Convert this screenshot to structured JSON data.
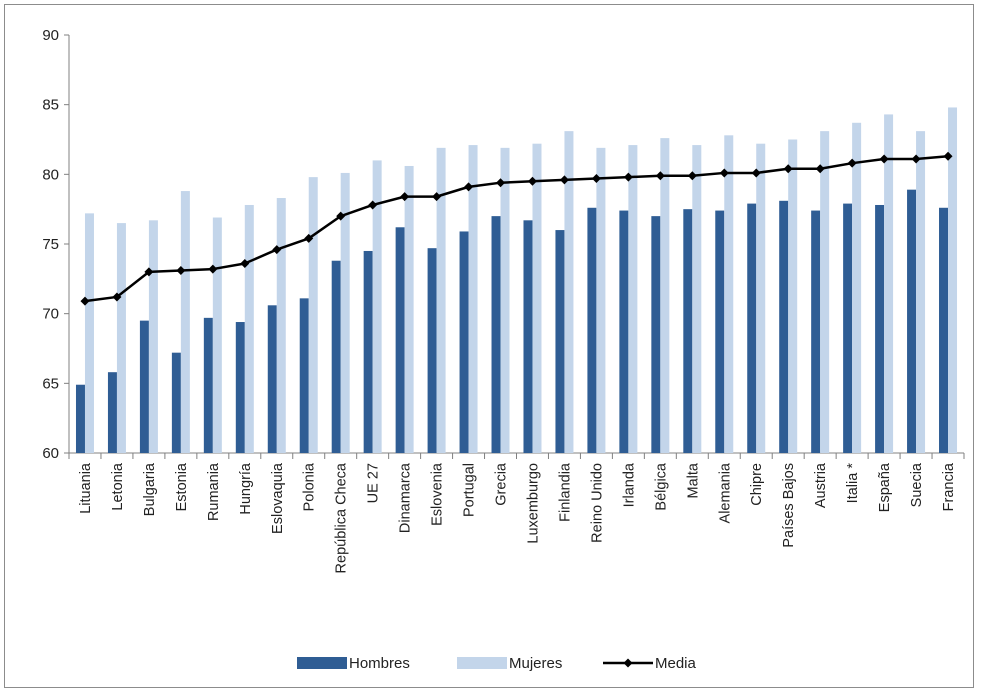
{
  "chart_data": {
    "type": "bar",
    "title": "",
    "xlabel": "",
    "ylabel": "",
    "ylim": [
      60,
      90
    ],
    "yticks": [
      60,
      65,
      70,
      75,
      80,
      85,
      90
    ],
    "grid": false,
    "legend_position": "bottom",
    "categories": [
      "Lituania",
      "Letonia",
      "Bulgaria",
      "Estonia",
      "Rumania",
      "Hungría",
      "Eslovaquia",
      "Polonia",
      "República Checa",
      "UE 27",
      "Dinamarca",
      "Eslovenia",
      "Portugal",
      "Grecia",
      "Luxemburgo",
      "Finlandia",
      "Reino Unido",
      "Irlanda",
      "Bélgica",
      "Malta",
      "Alemania",
      "Chipre",
      "Países Bajos",
      "Austria",
      "Italia *",
      "España",
      "Suecia",
      "Francia"
    ],
    "series": [
      {
        "name": "Hombres",
        "type": "bar",
        "color": "#2f5d94",
        "values": [
          64.9,
          65.8,
          69.5,
          67.2,
          69.7,
          69.4,
          70.6,
          71.1,
          73.8,
          74.5,
          76.2,
          74.7,
          75.9,
          77.0,
          76.7,
          76.0,
          77.6,
          77.4,
          77.0,
          77.5,
          77.4,
          77.9,
          78.1,
          77.4,
          77.9,
          77.8,
          78.9,
          77.6
        ]
      },
      {
        "name": "Mujeres",
        "type": "bar",
        "color": "#c3d5ea",
        "values": [
          77.2,
          76.5,
          76.7,
          78.8,
          76.9,
          77.8,
          78.3,
          79.8,
          80.1,
          81.0,
          80.6,
          81.9,
          82.1,
          81.9,
          82.2,
          83.1,
          81.9,
          82.1,
          82.6,
          82.1,
          82.8,
          82.2,
          82.5,
          83.1,
          83.7,
          84.3,
          83.1,
          84.8
        ]
      },
      {
        "name": "Media",
        "type": "line",
        "color": "#000000",
        "values": [
          70.9,
          71.2,
          73.0,
          73.1,
          73.2,
          73.6,
          74.6,
          75.4,
          77.0,
          77.8,
          78.4,
          78.4,
          79.1,
          79.4,
          79.5,
          79.6,
          79.7,
          79.8,
          79.9,
          79.9,
          80.1,
          80.1,
          80.4,
          80.4,
          80.8,
          81.1,
          81.1,
          81.3
        ]
      }
    ]
  }
}
